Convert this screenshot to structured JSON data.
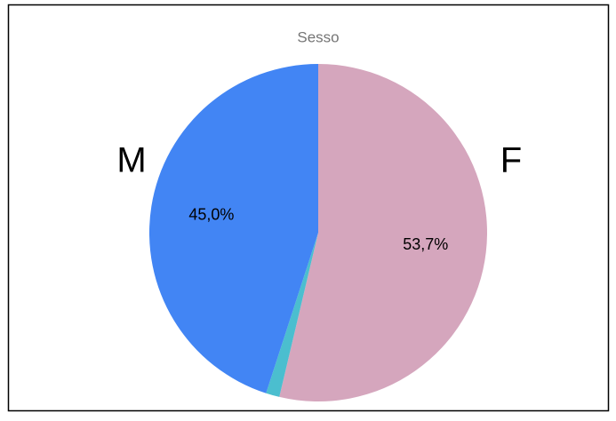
{
  "chart_data": {
    "type": "pie",
    "title": "Sesso",
    "categories": [
      "F",
      null,
      "M"
    ],
    "values": [
      53.7,
      1.3,
      45.0
    ],
    "value_labels": [
      "53,7%",
      null,
      "45,0%"
    ],
    "colors": [
      "#d5a6bd",
      "#4bbecf",
      "#4285f4"
    ]
  }
}
